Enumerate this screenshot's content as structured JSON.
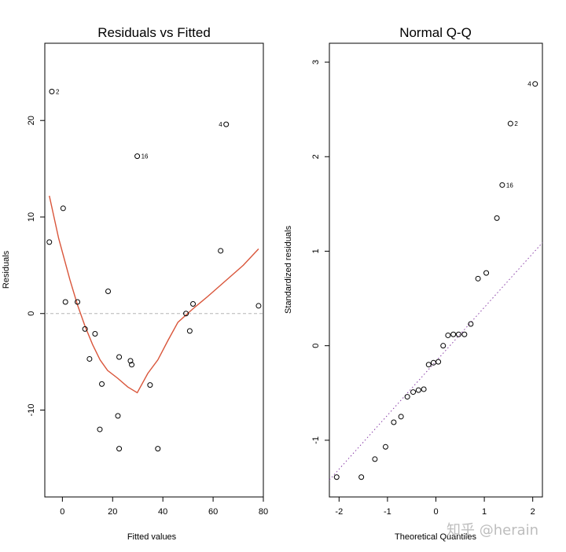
{
  "chart_data": [
    {
      "type": "scatter",
      "title": "Residuals vs Fitted",
      "xlabel": "Fitted values",
      "ylabel": "Residuals",
      "xlim": [
        -7,
        80
      ],
      "ylim": [
        -19,
        28
      ],
      "xticks": [
        0,
        20,
        40,
        60,
        80
      ],
      "yticks": [
        -10,
        0,
        10,
        20
      ],
      "points": [
        {
          "x": -4.2,
          "y": 23.0,
          "label": "2"
        },
        {
          "x": -5.2,
          "y": 7.4
        },
        {
          "x": 0.3,
          "y": 10.9
        },
        {
          "x": 1.2,
          "y": 1.2
        },
        {
          "x": 6.0,
          "y": 1.2
        },
        {
          "x": 9.0,
          "y": -1.6
        },
        {
          "x": 10.8,
          "y": -4.7
        },
        {
          "x": 13.0,
          "y": -2.1
        },
        {
          "x": 14.9,
          "y": -12.0
        },
        {
          "x": 15.7,
          "y": -7.3
        },
        {
          "x": 18.2,
          "y": 2.3
        },
        {
          "x": 22.1,
          "y": -10.6
        },
        {
          "x": 22.6,
          "y": -4.5
        },
        {
          "x": 22.6,
          "y": -14.0
        },
        {
          "x": 27.1,
          "y": -4.9
        },
        {
          "x": 27.6,
          "y": -5.3
        },
        {
          "x": 29.8,
          "y": 16.3,
          "label": "16"
        },
        {
          "x": 34.9,
          "y": -7.4
        },
        {
          "x": 38.0,
          "y": -14.0
        },
        {
          "x": 49.2,
          "y": 0.0
        },
        {
          "x": 50.7,
          "y": -1.8
        },
        {
          "x": 52.0,
          "y": 1.0
        },
        {
          "x": 63.0,
          "y": 6.5
        },
        {
          "x": 65.2,
          "y": 19.6,
          "label": "4"
        },
        {
          "x": 78.1,
          "y": 0.8
        }
      ],
      "smooth_line": {
        "color": "#d9553a",
        "x": [
          -5.2,
          -1.5,
          3.0,
          6.0,
          9.0,
          12.0,
          15.0,
          18.0,
          22.0,
          26.0,
          29.8,
          34.0,
          38.0,
          42.0,
          46.0,
          52.0,
          58.0,
          65.0,
          72.0,
          78.1
        ],
        "y": [
          12.2,
          7.8,
          3.5,
          0.9,
          -1.3,
          -3.2,
          -4.8,
          -5.9,
          -6.7,
          -7.6,
          -8.2,
          -6.2,
          -4.8,
          -2.8,
          -0.9,
          0.5,
          1.8,
          3.4,
          5.0,
          6.7
        ]
      },
      "reference_line": {
        "y": 0,
        "color": "#b5b5b5",
        "style": "dashed"
      }
    },
    {
      "type": "scatter",
      "title": "Normal Q-Q",
      "xlabel": "Theoretical Quantiles",
      "ylabel": "Standardized residuals",
      "xlim": [
        -2.2,
        2.2
      ],
      "ylim": [
        -1.6,
        3.2
      ],
      "xticks": [
        -2,
        -1,
        0,
        1,
        2
      ],
      "yticks": [
        -1,
        0,
        1,
        2,
        3
      ],
      "points": [
        {
          "x": -2.05,
          "y": -1.39
        },
        {
          "x": -1.54,
          "y": -1.39
        },
        {
          "x": -1.26,
          "y": -1.2
        },
        {
          "x": -1.04,
          "y": -1.07
        },
        {
          "x": -0.87,
          "y": -0.81
        },
        {
          "x": -0.72,
          "y": -0.75
        },
        {
          "x": -0.59,
          "y": -0.54
        },
        {
          "x": -0.47,
          "y": -0.49
        },
        {
          "x": -0.36,
          "y": -0.47
        },
        {
          "x": -0.25,
          "y": -0.46
        },
        {
          "x": -0.15,
          "y": -0.2
        },
        {
          "x": -0.05,
          "y": -0.18
        },
        {
          "x": 0.05,
          "y": -0.17
        },
        {
          "x": 0.15,
          "y": 0.0
        },
        {
          "x": 0.25,
          "y": 0.11
        },
        {
          "x": 0.36,
          "y": 0.12
        },
        {
          "x": 0.47,
          "y": 0.12
        },
        {
          "x": 0.59,
          "y": 0.12
        },
        {
          "x": 0.72,
          "y": 0.23
        },
        {
          "x": 0.87,
          "y": 0.71
        },
        {
          "x": 1.04,
          "y": 0.77
        },
        {
          "x": 1.26,
          "y": 1.35
        },
        {
          "x": 1.37,
          "y": 1.7,
          "label": "16"
        },
        {
          "x": 1.54,
          "y": 2.35,
          "label": "2"
        },
        {
          "x": 2.05,
          "y": 2.77,
          "label": "4"
        }
      ],
      "reference_line": {
        "x": [
          -2.2,
          2.2
        ],
        "y": [
          -1.42,
          1.09
        ],
        "color": "#8a3fa8",
        "style": "dotted"
      }
    }
  ],
  "watermark": "知乎 @herain"
}
